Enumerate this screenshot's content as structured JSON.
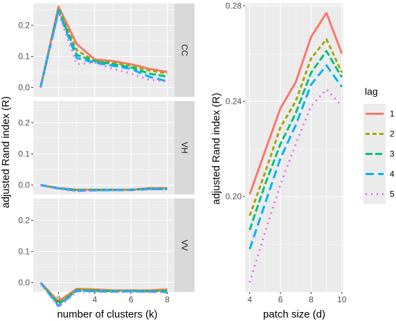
{
  "colors": {
    "panel_bg": "#ebebeb",
    "grid_major": "#ffffff",
    "strip_bg": "#d9d9d9",
    "series": [
      "#f8766d",
      "#a3a500",
      "#00bf7d",
      "#00b0f6",
      "#e76bf3"
    ]
  },
  "chart_data": [
    {
      "type": "line",
      "facets": [
        {
          "strip": "CC",
          "x": [
            1,
            2,
            3,
            4,
            5,
            6,
            7,
            8
          ],
          "series": [
            {
              "name": "1",
              "values": [
                0.0,
                0.26,
                0.14,
                0.09,
                0.085,
                0.075,
                0.06,
                0.05
              ]
            },
            {
              "name": "2",
              "values": [
                0.0,
                0.255,
                0.12,
                0.085,
                0.08,
                0.07,
                0.055,
                0.045
              ]
            },
            {
              "name": "3",
              "values": [
                0.0,
                0.25,
                0.105,
                0.085,
                0.075,
                0.065,
                0.045,
                0.035
              ]
            },
            {
              "name": "4",
              "values": [
                0.0,
                0.245,
                0.095,
                0.08,
                0.07,
                0.06,
                0.035,
                0.02
              ]
            },
            {
              "name": "5",
              "values": [
                0.0,
                0.24,
                0.075,
                0.08,
                0.06,
                0.045,
                0.025,
                0.02
              ]
            }
          ]
        },
        {
          "strip": "VH",
          "x": [
            1,
            2,
            3,
            4,
            5,
            6,
            7,
            8
          ],
          "series": [
            {
              "name": "1",
              "values": [
                0.0,
                -0.01,
                -0.015,
                -0.015,
                -0.015,
                -0.015,
                -0.01,
                -0.01
              ]
            },
            {
              "name": "2",
              "values": [
                0.0,
                -0.01,
                -0.015,
                -0.015,
                -0.015,
                -0.015,
                -0.012,
                -0.01
              ]
            },
            {
              "name": "3",
              "values": [
                0.0,
                -0.01,
                -0.017,
                -0.016,
                -0.016,
                -0.015,
                -0.012,
                -0.012
              ]
            },
            {
              "name": "4",
              "values": [
                0.0,
                -0.011,
                -0.018,
                -0.017,
                -0.016,
                -0.016,
                -0.013,
                -0.013
              ]
            },
            {
              "name": "5",
              "values": [
                0.0,
                -0.012,
                -0.02,
                -0.018,
                -0.017,
                -0.016,
                -0.014,
                -0.015
              ]
            }
          ]
        },
        {
          "strip": "VV",
          "x": [
            1,
            2,
            3,
            4,
            5,
            6,
            7,
            8
          ],
          "series": [
            {
              "name": "1",
              "values": [
                0.0,
                -0.06,
                -0.02,
                -0.022,
                -0.025,
                -0.025,
                -0.025,
                -0.022
              ]
            },
            {
              "name": "2",
              "values": [
                0.0,
                -0.065,
                -0.022,
                -0.024,
                -0.026,
                -0.026,
                -0.027,
                -0.025
              ]
            },
            {
              "name": "3",
              "values": [
                0.0,
                -0.07,
                -0.025,
                -0.026,
                -0.028,
                -0.027,
                -0.028,
                -0.027
              ]
            },
            {
              "name": "4",
              "values": [
                0.0,
                -0.075,
                -0.026,
                -0.028,
                -0.029,
                -0.028,
                -0.029,
                -0.03
              ]
            },
            {
              "name": "5",
              "values": [
                0.0,
                -0.08,
                -0.03,
                -0.03,
                -0.031,
                -0.03,
                -0.03,
                -0.032
              ]
            }
          ]
        }
      ],
      "ylim": [
        -0.03,
        0.27
      ],
      "xlim": [
        0.6,
        8.4
      ],
      "x_ticks": [
        2,
        4,
        6,
        8
      ],
      "y_ticks": [
        0.0,
        0.1,
        0.2
      ],
      "y_tick_labels": [
        "0.0",
        "0.1",
        "0.2"
      ],
      "xlabel": "number of clusters (k)",
      "ylabel": "adjusted Rand index (R)",
      "grid": true
    },
    {
      "type": "line",
      "x": [
        4,
        5,
        6,
        7,
        8,
        9,
        10
      ],
      "series": [
        {
          "name": "1",
          "values": [
            0.201,
            0.219,
            0.237,
            0.248,
            0.267,
            0.277,
            0.26
          ]
        },
        {
          "name": "2",
          "values": [
            0.192,
            0.21,
            0.229,
            0.24,
            0.258,
            0.266,
            0.252
          ]
        },
        {
          "name": "3",
          "values": [
            0.186,
            0.205,
            0.222,
            0.235,
            0.252,
            0.261,
            0.25
          ]
        },
        {
          "name": "4",
          "values": [
            0.178,
            0.197,
            0.216,
            0.23,
            0.247,
            0.255,
            0.246
          ]
        },
        {
          "name": "5",
          "values": [
            0.164,
            0.185,
            0.205,
            0.222,
            0.238,
            0.245,
            0.238
          ]
        }
      ],
      "ylim": [
        0.16,
        0.281
      ],
      "xlim": [
        3.7,
        10.1
      ],
      "x_ticks": [
        4,
        6,
        8,
        10
      ],
      "y_ticks": [
        0.2,
        0.24,
        0.28
      ],
      "y_tick_labels": [
        "0.20",
        "0.24",
        "0.28"
      ],
      "xlabel": "patch size (d)",
      "ylabel": "adjusted Rand index (R)",
      "grid": true
    }
  ],
  "legend": {
    "title": "lag",
    "position": "right",
    "entries": [
      "1",
      "2",
      "3",
      "4",
      "5"
    ]
  }
}
